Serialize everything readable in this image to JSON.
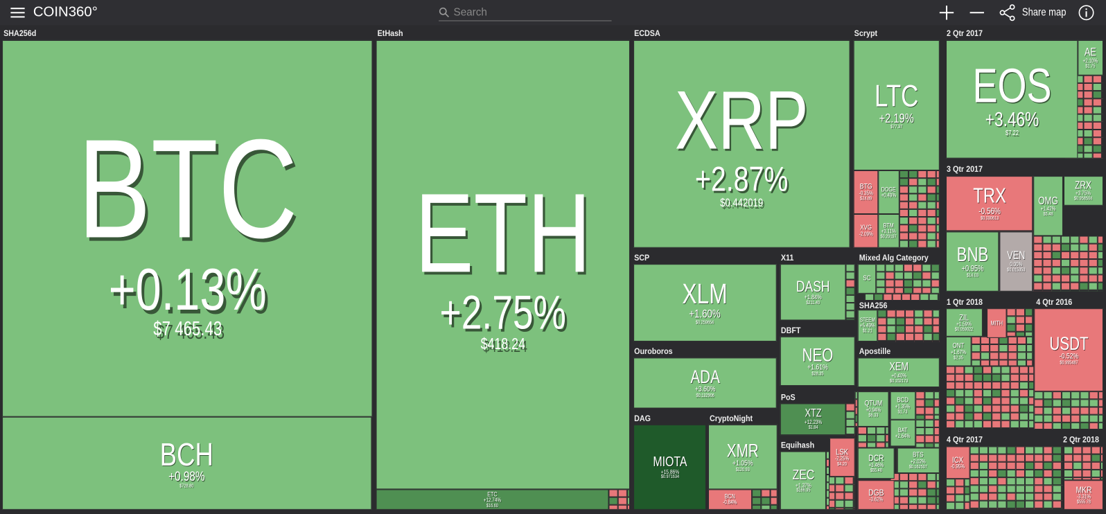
{
  "header": {
    "logo": "COIN360°",
    "search": "Search",
    "share": "Share map"
  },
  "groups": [
    {
      "label": "SHA256d",
      "tiles": [
        {
          "symbol": "BTC",
          "change": "+0.13%",
          "price": "$7 465.43"
        },
        {
          "symbol": "BCH",
          "change": "+0.98%",
          "price": "$728.80"
        }
      ]
    },
    {
      "label": "EtHash",
      "tiles": [
        {
          "symbol": "ETH",
          "change": "+2.75%",
          "price": "$418.24"
        },
        {
          "symbol": "ETC",
          "change": "+12.74%",
          "price": "$16.60"
        }
      ]
    },
    {
      "label": "ECDSA",
      "tiles": [
        {
          "symbol": "XRP",
          "change": "+2.87%",
          "price": "$0.442019"
        }
      ]
    },
    {
      "label": "Scrypt",
      "tiles": [
        {
          "symbol": "LTC",
          "change": "+2.19%",
          "price": "$77.37"
        },
        {
          "symbol": "BTG",
          "change": "-0.35%",
          "price": "$24.89"
        },
        {
          "symbol": "DOGE",
          "change": "+0.49%"
        },
        {
          "symbol": "XVG",
          "change": "-2.09%"
        },
        {
          "symbol": "BTM",
          "change": "+3.11%",
          "price": "$0.29197"
        }
      ]
    },
    {
      "label": "2 Qtr 2017",
      "tiles": [
        {
          "symbol": "EOS",
          "change": "+3.46%",
          "price": "$7.22"
        },
        {
          "symbol": "AE",
          "change": "+2.10%",
          "price": "$1.75"
        }
      ]
    },
    {
      "label": "3 Qtr 2017",
      "tiles": [
        {
          "symbol": "TRX",
          "change": "-0.56%",
          "price": "$0.030613"
        },
        {
          "symbol": "OMG",
          "change": "+1.42%",
          "price": "$5.48"
        },
        {
          "symbol": "ZRX",
          "change": "+3.75%",
          "price": "$0.958504"
        },
        {
          "symbol": "BNB",
          "change": "+0.95%",
          "price": "$14.03"
        },
        {
          "symbol": "VEN",
          "change": "0.00%",
          "price": "$0.015353"
        }
      ]
    },
    {
      "label": "SCP",
      "tiles": [
        {
          "symbol": "XLM",
          "change": "+1.60%",
          "price": "$0.259654"
        }
      ]
    },
    {
      "label": "X11",
      "tiles": [
        {
          "symbol": "DASH",
          "change": "+1.84%",
          "price": "$211.40"
        }
      ]
    },
    {
      "label": "Mixed Alg Category",
      "tiles": [
        {
          "symbol": "SC"
        }
      ]
    },
    {
      "label": "Ouroboros",
      "tiles": [
        {
          "symbol": "ADA",
          "change": "+3.60%",
          "price": "$0.132906"
        }
      ]
    },
    {
      "label": "DBFT",
      "tiles": [
        {
          "symbol": "NEO",
          "change": "+1.61%",
          "price": "$28.35"
        }
      ]
    },
    {
      "label": "SHA256",
      "tiles": [
        {
          "symbol": "STEEM",
          "change": "+5.49%",
          "price": "$1.21"
        }
      ]
    },
    {
      "label": "Apostille",
      "tiles": [
        {
          "symbol": "XEM",
          "change": "+0.40%",
          "price": "$0.152173"
        },
        {
          "symbol": "QTUM",
          "change": "+0.94%",
          "price": "$6.33"
        },
        {
          "symbol": "BCD",
          "change": "+1.35%",
          "price": "$1.73"
        },
        {
          "symbol": "DCR",
          "change": "+3.46%",
          "price": "$55.48"
        },
        {
          "symbol": "DGB",
          "change": "-3.62%"
        },
        {
          "symbol": "BAT",
          "change": "+2.64%"
        },
        {
          "symbol": "BTS",
          "change": "+2.02%",
          "price": "$0.162507"
        }
      ]
    },
    {
      "label": "PoS",
      "tiles": [
        {
          "symbol": "XTZ",
          "change": "+12.23%",
          "price": "$1.84"
        }
      ]
    },
    {
      "label": "DAG",
      "tiles": [
        {
          "symbol": "MIOTA",
          "change": "+15.86%",
          "price": "$0.971634"
        }
      ]
    },
    {
      "label": "CryptoNight",
      "tiles": [
        {
          "symbol": "XMR",
          "change": "+1.05%",
          "price": "$120.93"
        },
        {
          "symbol": "BCN",
          "change": "-0.84%"
        }
      ]
    },
    {
      "label": "Equihash",
      "tiles": [
        {
          "symbol": "ZEC",
          "change": "+1.37%",
          "price": "$166.95"
        },
        {
          "symbol": "LSK",
          "change": "-2.25%",
          "price": "$4.20"
        }
      ]
    },
    {
      "label": "1 Qtr 2018",
      "tiles": [
        {
          "symbol": "ZIL",
          "change": "+1.59%",
          "price": "$0.059022"
        },
        {
          "symbol": "ONT",
          "change": "+1.67%",
          "price": "$2.35"
        },
        {
          "symbol": "MITH"
        }
      ]
    },
    {
      "label": "4 Qtr 2016",
      "tiles": [
        {
          "symbol": "USDT",
          "change": "-0.52%",
          "price": "$0.995487"
        }
      ]
    },
    {
      "label": "4 Qtr 2017",
      "tiles": [
        {
          "symbol": "ICX",
          "change": "-0.95%"
        }
      ]
    },
    {
      "label": "2 Qtr 2018",
      "tiles": [
        {
          "symbol": "MKR",
          "change": "-3.31%",
          "price": "$555.78"
        }
      ]
    }
  ]
}
